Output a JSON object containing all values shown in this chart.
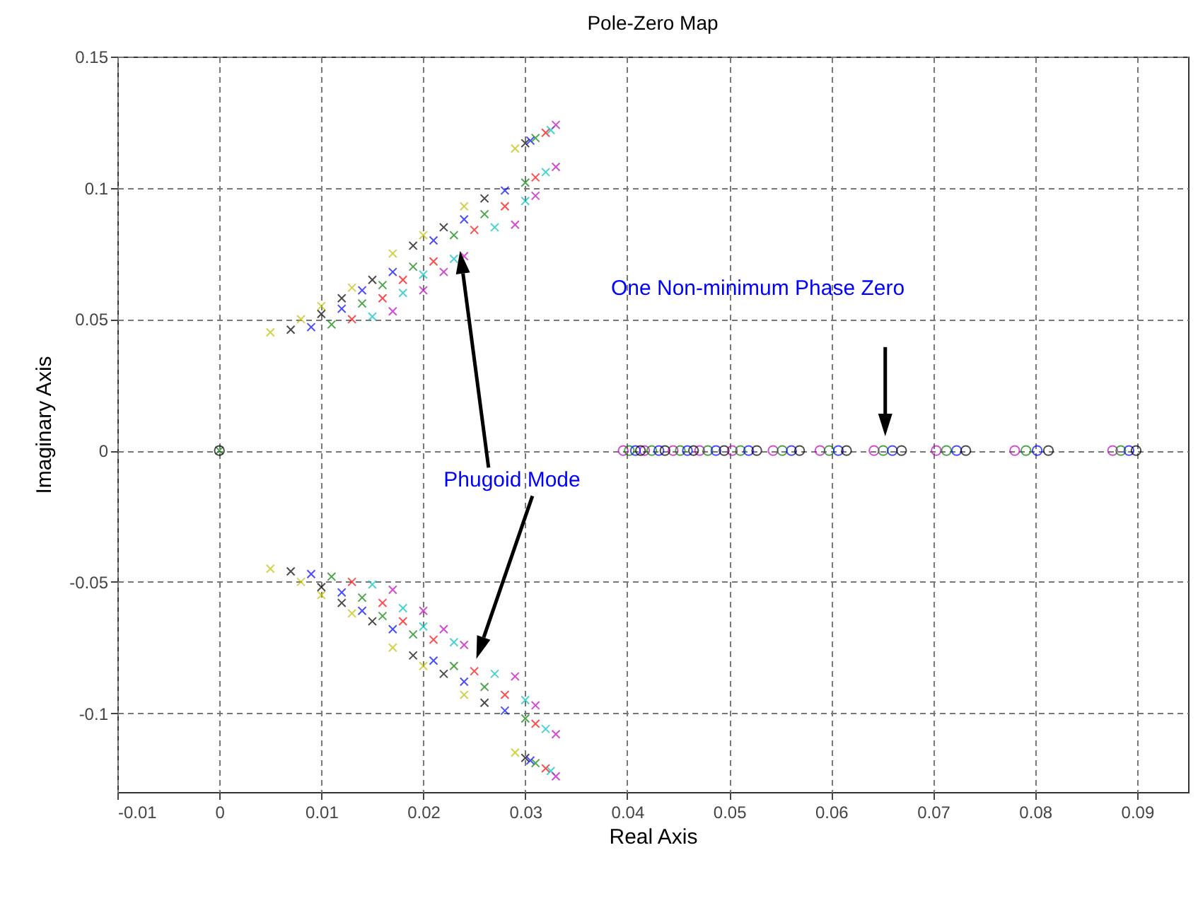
{
  "chart_data": {
    "type": "scatter",
    "title": "Pole-Zero Map",
    "xlabel": "Real Axis",
    "ylabel": "Imaginary Axis",
    "annotations": [
      "Phugoid Mode",
      "One Non-minimum Phase Zero"
    ],
    "xlim": [
      -0.01,
      0.095
    ],
    "xticks": [
      -0.01,
      0,
      0.01,
      0.02,
      0.03,
      0.04,
      0.05,
      0.06,
      0.07,
      0.08,
      0.09
    ],
    "ylim": [
      -0.13,
      0.15
    ],
    "yticks": [
      -0.1,
      -0.05,
      0,
      0.05,
      0.1,
      0.15
    ],
    "grid": true,
    "series": [
      {
        "color": "#bfbf00",
        "marker": "cross",
        "x": [
          0.005,
          0.008,
          0.01,
          0.013,
          0.017,
          0.02,
          0.024,
          0.029,
          0.005,
          0.008,
          0.01,
          0.013,
          0.017,
          0.02,
          0.024,
          0.029
        ],
        "values": [
          0.045,
          0.05,
          0.055,
          0.062,
          0.075,
          0.082,
          0.093,
          0.115,
          -0.045,
          -0.05,
          -0.055,
          -0.062,
          -0.075,
          -0.082,
          -0.093,
          -0.115
        ]
      },
      {
        "color": "#000000",
        "marker": "cross",
        "x": [
          0.007,
          0.01,
          0.012,
          0.015,
          0.019,
          0.022,
          0.026,
          0.03,
          0.007,
          0.01,
          0.012,
          0.015,
          0.019,
          0.022,
          0.026,
          0.03
        ],
        "values": [
          0.046,
          0.052,
          0.058,
          0.065,
          0.078,
          0.085,
          0.096,
          0.117,
          -0.046,
          -0.052,
          -0.058,
          -0.065,
          -0.078,
          -0.085,
          -0.096,
          -0.117
        ]
      },
      {
        "color": "#0000ff",
        "marker": "cross",
        "x": [
          0.009,
          0.012,
          0.014,
          0.017,
          0.021,
          0.024,
          0.028,
          0.0305,
          0.009,
          0.012,
          0.014,
          0.017,
          0.021,
          0.024,
          0.028,
          0.0305
        ],
        "values": [
          0.047,
          0.054,
          0.061,
          0.068,
          0.08,
          0.088,
          0.099,
          0.118,
          -0.047,
          -0.054,
          -0.061,
          -0.068,
          -0.08,
          -0.088,
          -0.099,
          -0.118
        ]
      },
      {
        "color": "#008000",
        "marker": "cross",
        "x": [
          0,
          0.011,
          0.014,
          0.016,
          0.019,
          0.023,
          0.026,
          0.03,
          0.031,
          0.011,
          0.014,
          0.016,
          0.019,
          0.023,
          0.026,
          0.03,
          0.031
        ],
        "values": [
          0,
          0.048,
          0.056,
          0.063,
          0.07,
          0.082,
          0.09,
          0.102,
          0.119,
          -0.048,
          -0.056,
          -0.063,
          -0.07,
          -0.082,
          -0.09,
          -0.102,
          -0.119
        ]
      },
      {
        "color": "#ff0000",
        "marker": "cross",
        "x": [
          0.013,
          0.016,
          0.018,
          0.021,
          0.025,
          0.028,
          0.031,
          0.032,
          0.013,
          0.016,
          0.018,
          0.021,
          0.025,
          0.028,
          0.031,
          0.032
        ],
        "values": [
          0.05,
          0.058,
          0.065,
          0.072,
          0.084,
          0.093,
          0.104,
          0.121,
          -0.05,
          -0.058,
          -0.065,
          -0.072,
          -0.084,
          -0.093,
          -0.104,
          -0.121
        ]
      },
      {
        "color": "#00bfbf",
        "marker": "cross",
        "x": [
          0.015,
          0.018,
          0.02,
          0.023,
          0.027,
          0.03,
          0.032,
          0.0325,
          0.015,
          0.018,
          0.02,
          0.023,
          0.027,
          0.03,
          0.032,
          0.0325
        ],
        "values": [
          0.051,
          0.06,
          0.067,
          0.073,
          0.085,
          0.095,
          0.106,
          0.122,
          -0.051,
          -0.06,
          -0.067,
          -0.073,
          -0.085,
          -0.095,
          -0.106,
          -0.122
        ]
      },
      {
        "color": "#bf00bf",
        "marker": "cross",
        "x": [
          0.017,
          0.02,
          0.022,
          0.024,
          0.029,
          0.031,
          0.033,
          0.033,
          0.017,
          0.02,
          0.022,
          0.024,
          0.029,
          0.031,
          0.033,
          0.033
        ],
        "values": [
          0.053,
          0.061,
          0.068,
          0.074,
          0.086,
          0.097,
          0.108,
          0.124,
          -0.053,
          -0.061,
          -0.068,
          -0.074,
          -0.086,
          -0.097,
          -0.108,
          -0.124
        ]
      },
      {
        "color": "#bf00bf",
        "marker": "circle",
        "x": [
          0.0396,
          0.0417,
          0.0445,
          0.0471,
          0.0503,
          0.0543,
          0.0589,
          0.0642,
          0.0703,
          0.078,
          0.0876
        ],
        "values": [
          0,
          0,
          0,
          0,
          0,
          0,
          0,
          0,
          0,
          0,
          0
        ]
      },
      {
        "color": "#008000",
        "marker": "circle",
        "x": [
          0.0402,
          0.0424,
          0.0452,
          0.0479,
          0.0511,
          0.0552,
          0.0598,
          0.0651,
          0.0713,
          0.0791,
          0.0884
        ],
        "values": [
          0,
          0,
          0,
          0,
          0,
          0,
          0,
          0,
          0,
          0,
          0
        ]
      },
      {
        "color": "#0000ff",
        "marker": "circle",
        "x": [
          0.0408,
          0.0431,
          0.0459,
          0.0487,
          0.0519,
          0.0561,
          0.0607,
          0.066,
          0.0723,
          0.0802,
          0.0892
        ],
        "values": [
          0,
          0,
          0,
          0,
          0,
          0,
          0,
          0,
          0,
          0,
          0
        ]
      },
      {
        "color": "#000000",
        "marker": "circle",
        "x": [
          0,
          0.0413,
          0.0437,
          0.0465,
          0.0495,
          0.0527,
          0.0569,
          0.0615,
          0.0669,
          0.0732,
          0.0813,
          0.0899
        ],
        "values": [
          0,
          0,
          0,
          0,
          0,
          0,
          0,
          0,
          0,
          0,
          0,
          0
        ]
      }
    ]
  }
}
